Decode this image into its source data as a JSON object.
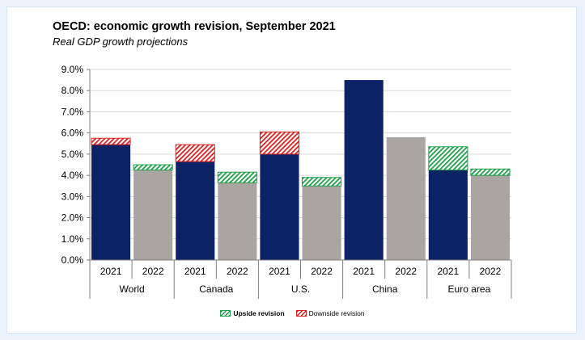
{
  "chart_data": {
    "type": "bar",
    "title": "OECD: economic growth revision, September 2021",
    "subtitle": "Real GDP growth projections",
    "ylim": [
      0,
      9
    ],
    "yticks": [
      "0.0%",
      "1.0%",
      "2.0%",
      "3.0%",
      "4.0%",
      "5.0%",
      "6.0%",
      "7.0%",
      "8.0%",
      "9.0%"
    ],
    "grid": true,
    "groups": [
      "World",
      "Canada",
      "U.S.",
      "China",
      "Euro area"
    ],
    "years": [
      "2021",
      "2022"
    ],
    "bars": [
      {
        "group": "World",
        "year": "2021",
        "base": 5.45,
        "upside": 0,
        "downside": 0.3
      },
      {
        "group": "World",
        "year": "2022",
        "base": 4.25,
        "upside": 0.25,
        "downside": 0
      },
      {
        "group": "Canada",
        "year": "2021",
        "base": 4.65,
        "upside": 0,
        "downside": 0.8
      },
      {
        "group": "Canada",
        "year": "2022",
        "base": 3.65,
        "upside": 0.5,
        "downside": 0
      },
      {
        "group": "U.S.",
        "year": "2021",
        "base": 5.0,
        "upside": 0,
        "downside": 1.05
      },
      {
        "group": "U.S.",
        "year": "2022",
        "base": 3.5,
        "upside": 0.4,
        "downside": 0
      },
      {
        "group": "China",
        "year": "2021",
        "base": 8.5,
        "upside": 0,
        "downside": 0
      },
      {
        "group": "China",
        "year": "2022",
        "base": 5.8,
        "upside": 0,
        "downside": 0
      },
      {
        "group": "Euro area",
        "year": "2021",
        "base": 4.25,
        "upside": 1.1,
        "downside": 0
      },
      {
        "group": "Euro area",
        "year": "2022",
        "base": 4.0,
        "upside": 0.3,
        "downside": 0
      }
    ],
    "legend": {
      "upside": "Upside revision",
      "downside": "Downside revision",
      "placement": "bottom-center"
    },
    "colors": {
      "year_2021": "#0b2265",
      "year_2022": "#aba5a2",
      "upside": "#1e9e4a",
      "downside": "#d82020"
    }
  }
}
